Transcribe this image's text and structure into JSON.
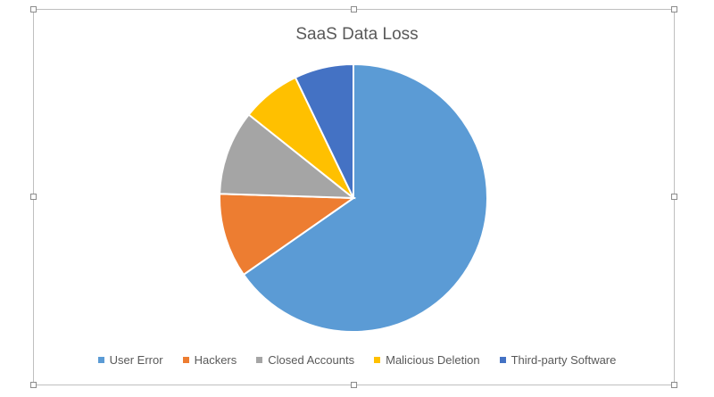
{
  "chart_data": {
    "type": "pie",
    "title": "SaaS Data Loss",
    "categories": [
      "User Error",
      "Hackers",
      "Closed Accounts",
      "Malicious Deletion",
      "Third-party Software"
    ],
    "values": [
      64,
      10,
      10,
      7,
      7
    ],
    "colors": [
      "#5b9bd5",
      "#ed7d31",
      "#a5a5a5",
      "#ffc000",
      "#4472c4"
    ],
    "legend_position": "bottom"
  }
}
